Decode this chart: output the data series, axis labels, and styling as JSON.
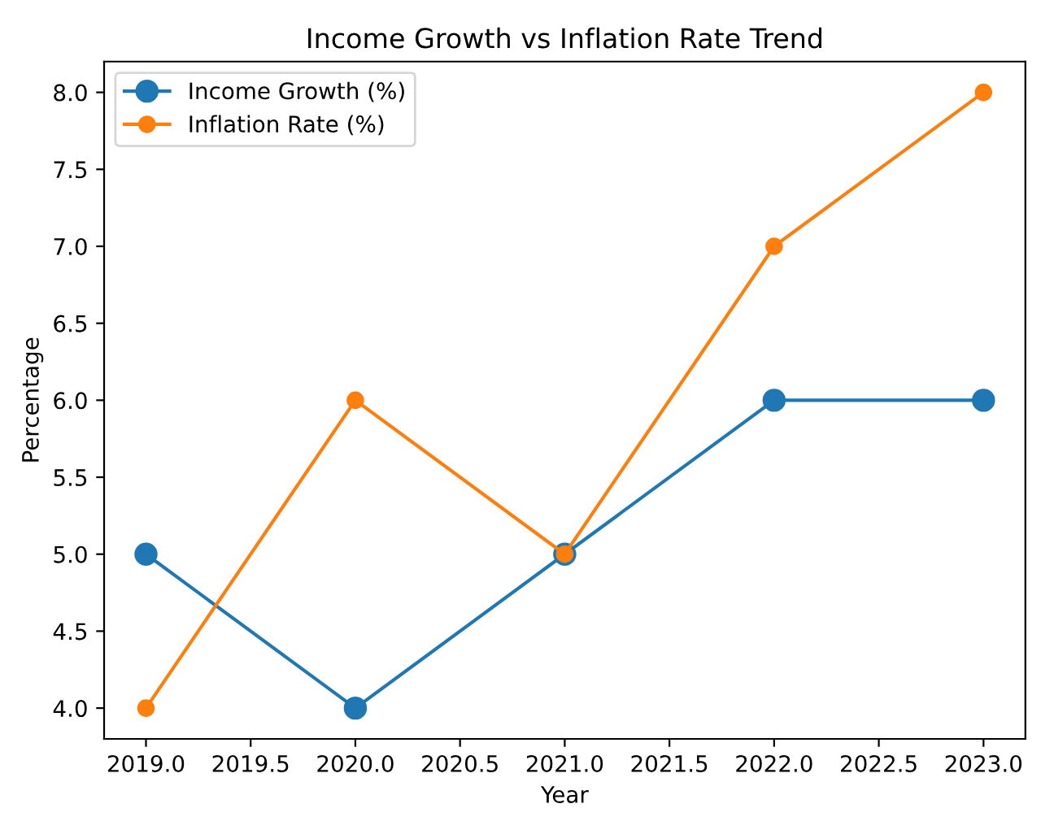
{
  "chart_data": {
    "type": "line",
    "title": "Income Growth vs Inflation Rate Trend",
    "xlabel": "Year",
    "ylabel": "Percentage",
    "x": [
      2019,
      2020,
      2021,
      2022,
      2023
    ],
    "series": [
      {
        "name": "Income Growth (%)",
        "color": "#1f77b4",
        "values": [
          5,
          4,
          5,
          6,
          6
        ]
      },
      {
        "name": "Inflation Rate (%)",
        "color": "#ff7f0e",
        "values": [
          4,
          6,
          5,
          7,
          8
        ]
      }
    ],
    "xlim": [
      2018.8,
      2023.2
    ],
    "xticks": [
      {
        "value": 2019,
        "label": "2019.0"
      },
      {
        "value": 2019.5,
        "label": "2019.5"
      },
      {
        "value": 2020,
        "label": "2020.0"
      },
      {
        "value": 2020.5,
        "label": "2020.5"
      },
      {
        "value": 2021,
        "label": "2021.0"
      },
      {
        "value": 2021.5,
        "label": "2021.5"
      },
      {
        "value": 2022,
        "label": "2022.0"
      },
      {
        "value": 2022.5,
        "label": "2022.5"
      },
      {
        "value": 2023,
        "label": "2023.0"
      }
    ],
    "ylim": [
      3.8,
      8.2
    ],
    "yticks": [
      {
        "value": 4,
        "label": "4.0"
      },
      {
        "value": 4.5,
        "label": "4.5"
      },
      {
        "value": 5,
        "label": "5.0"
      },
      {
        "value": 5.5,
        "label": "5.5"
      },
      {
        "value": 6,
        "label": "6.0"
      },
      {
        "value": 6.5,
        "label": "6.5"
      },
      {
        "value": 7,
        "label": "7.0"
      },
      {
        "value": 7.5,
        "label": "7.5"
      },
      {
        "value": 8,
        "label": "8.0"
      }
    ],
    "legend": "top left",
    "marker": "circle",
    "line_style": "solid",
    "grid": false
  }
}
